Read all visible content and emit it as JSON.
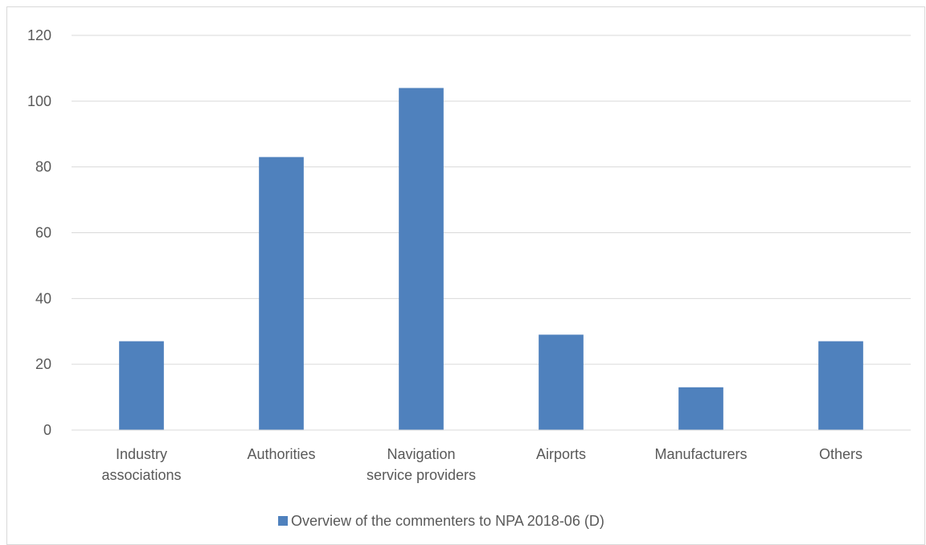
{
  "chart_data": {
    "type": "bar",
    "categories": [
      [
        "Industry",
        "associations"
      ],
      [
        "Authorities"
      ],
      [
        "Navigation",
        "service providers"
      ],
      [
        "Airports"
      ],
      [
        "Manufacturers"
      ],
      [
        "Others"
      ]
    ],
    "series": [
      {
        "name": "Overview of the commenters to NPA 2018-06 (D)",
        "color": "#4f81bd",
        "values": [
          27,
          83,
          104,
          29,
          13,
          27
        ]
      }
    ],
    "ylim": [
      0,
      120
    ],
    "yticks": [
      0,
      20,
      40,
      60,
      80,
      100,
      120
    ],
    "grid": true,
    "legend": "bottom"
  }
}
